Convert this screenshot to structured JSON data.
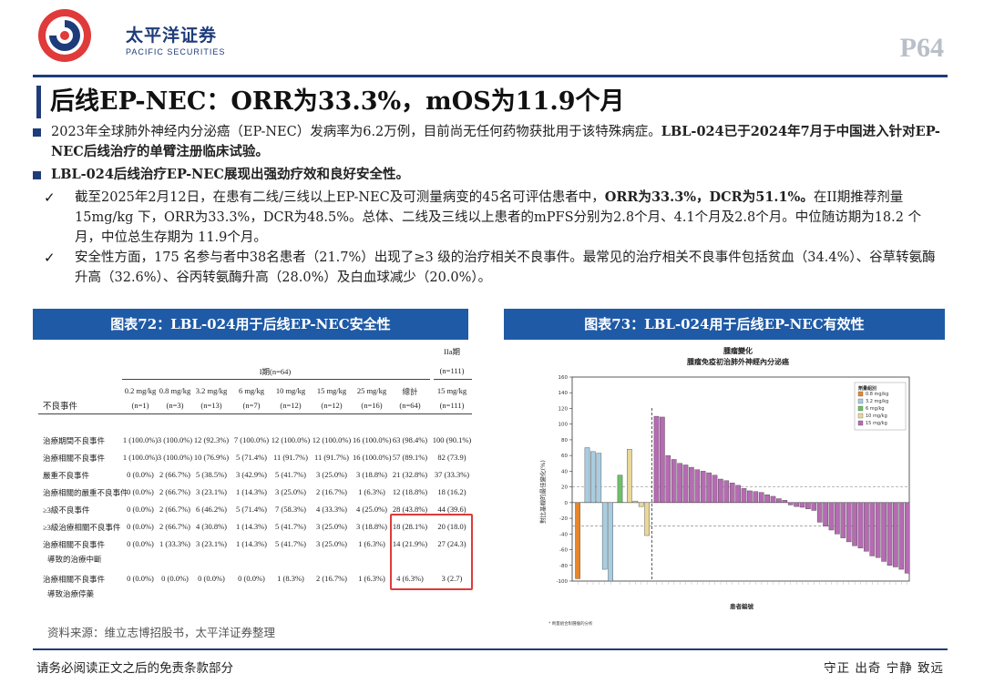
{
  "header": {
    "logo_cn": "太平洋证券",
    "logo_en": "PACIFIC SECURITIES",
    "page_number": "P64",
    "colors": {
      "brand": "#1f3c7a",
      "accent": "#e03a3a",
      "fig_header": "#1f5aa6"
    }
  },
  "title": "后线EP-NEC：ORR为33.3%，mOS为11.9个月",
  "bullets": {
    "b1_text": "2023年全球肺外神经内分泌癌（EP-NEC）发病率为6.2万例，目前尚无任何药物获批用于该特殊病症。",
    "b1_bold": "LBL-024已于2024年7月于中国进入针对EP-NEC后线治疗的单臂注册临床试验。",
    "b2_bold": "LBL-024后线治疗EP-NEC展现出强劲疗效和良好安全性。",
    "c1_text_a": "截至2025年2月12日，在患有二线/三线以上EP-NEC及可测量病变的45名可评估患者中，",
    "c1_bold": "ORR为33.3%，DCR为51.1%。",
    "c1_text_b": "在II期推荐剂量15mg/kg 下，ORR为33.3%，DCR为48.5%。总体、二线及三线以上患者的mPFS分别为2.8个月、4.1个月及2.8个月。中位随访期为18.2 个月，中位总生存期为 11.9个月。",
    "c2_text": "安全性方面，175 名参与者中38名患者（21.7%）出现了≥3 级的治疗相关不良事件。最常见的治疗相关不良事件包括贫血（34.4%）、谷草转氨酶升高（32.6%）、谷丙转氨酶升高（28.0%）及白血球减少（20.0%）。",
    "check_icon": "check-icon"
  },
  "fig72": {
    "title": "图表72：LBL-024用于后线EP-NEC安全性",
    "phase1_header": "I期(n=64)",
    "phase2_header": "IIa期",
    "phase2_n": "(n=111)",
    "row_header": "不良事件",
    "columns": [
      {
        "dose": "0.2 mg/kg",
        "n": "(n=1)"
      },
      {
        "dose": "0.8 mg/kg",
        "n": "(n=3)"
      },
      {
        "dose": "3.2 mg/kg",
        "n": "(n=13)"
      },
      {
        "dose": "6 mg/kg",
        "n": "(n=7)"
      },
      {
        "dose": "10 mg/kg",
        "n": "(n=12)"
      },
      {
        "dose": "15 mg/kg",
        "n": "(n=12)"
      },
      {
        "dose": "25 mg/kg",
        "n": "(n=16)"
      },
      {
        "dose": "總計",
        "n": "(n=64)"
      },
      {
        "dose": "15 mg/kg",
        "n": "(n=111)"
      }
    ],
    "rows": [
      {
        "label": "治療期間不良事件",
        "values": [
          "1 (100.0%)",
          "3 (100.0%)",
          "12 (92.3%)",
          "7 (100.0%)",
          "12 (100.0%)",
          "12 (100.0%)",
          "16 (100.0%)",
          "63 (98.4%)",
          "100 (90.1%)"
        ]
      },
      {
        "label": "治療相關不良事件",
        "values": [
          "1 (100.0%)",
          "3 (100.0%)",
          "10 (76.9%)",
          "5 (71.4%)",
          "11 (91.7%)",
          "11 (91.7%)",
          "16 (100.0%)",
          "57 (89.1%)",
          "82 (73.9)"
        ]
      },
      {
        "label": "嚴重不良事件",
        "values": [
          "0 (0.0%)",
          "2 (66.7%)",
          "5 (38.5%)",
          "3 (42.9%)",
          "5 (41.7%)",
          "3 (25.0%)",
          "3 (18.8%)",
          "21 (32.8%)",
          "37 (33.3%)"
        ]
      },
      {
        "label": "治療相關的嚴重不良事件",
        "values": [
          "0 (0.0%)",
          "2 (66.7%)",
          "3 (23.1%)",
          "1 (14.3%)",
          "3 (25.0%)",
          "2 (16.7%)",
          "1 (6.3%)",
          "12 (18.8%)",
          "18 (16.2)"
        ]
      },
      {
        "label": "≥3級不良事件",
        "values": [
          "0 (0.0%)",
          "2 (66.7%)",
          "6 (46.2%)",
          "5 (71.4%)",
          "7 (58.3%)",
          "4 (33.3%)",
          "4 (25.0%)",
          "28 (43.8%)",
          "44 (39.6)"
        ]
      },
      {
        "label": "≥3級治療相關不良事件",
        "values": [
          "0 (0.0%)",
          "2 (66.7%)",
          "4 (30.8%)",
          "1 (14.3%)",
          "5 (41.7%)",
          "3 (25.0%)",
          "3 (18.8%)",
          "18 (28.1%)",
          "20 (18.0)"
        ]
      },
      {
        "label": "治療相關不良事件",
        "label2": "導致的治療中斷",
        "values": [
          "0 (0.0%)",
          "1 (33.3%)",
          "3 (23.1%)",
          "1 (14.3%)",
          "5 (41.7%)",
          "3 (25.0%)",
          "1 (6.3%)",
          "14 (21.9%)",
          "27 (24.3)"
        ]
      },
      {
        "label": "治療相關不良事件",
        "label2": "導致治療停藥",
        "values": [
          "0 (0.0%)",
          "0 (0.0%)",
          "0 (0.0%)",
          "0 (0.0%)",
          "1 (8.3%)",
          "2 (16.7%)",
          "1 (6.3%)",
          "4 (6.3%)",
          "3 (2.7)"
        ]
      }
    ]
  },
  "fig73": {
    "title": "图表73：LBL-024用于后线EP-NEC有效性"
  },
  "chart_data": {
    "type": "bar",
    "title": "腫瘤變化",
    "subtitle": "腫瘤免疫初治肺外神經內分泌癌",
    "xlabel": "患者編號",
    "ylabel": "對比基線的最佳變化(%)",
    "ylim": [
      -100,
      160
    ],
    "yticks": [
      -100,
      -80,
      -60,
      -40,
      -20,
      0,
      20,
      40,
      60,
      80,
      100,
      120,
      140,
      160
    ],
    "reference_lines": [
      20,
      -30
    ],
    "grid": false,
    "legend_title": "劑量組別",
    "legend_placement": "top-right",
    "series": [
      {
        "name": "0.8 mg/kg",
        "color": "#e8862a",
        "values": [
          -97
        ]
      },
      {
        "name": "3.2 mg/kg",
        "color": "#a9cde0",
        "values": [
          70,
          65,
          63,
          -85,
          -100
        ]
      },
      {
        "name": "6 mg/kg",
        "color": "#6fbf6a",
        "values": [
          35
        ]
      },
      {
        "name": "10 mg/kg",
        "color": "#e9d89a",
        "values": [
          68,
          2,
          -5,
          -42
        ]
      },
      {
        "name": "15 mg/kg",
        "color": "#b66bb3",
        "values": [
          110,
          109,
          60,
          55,
          50,
          48,
          45,
          42,
          40,
          38,
          35,
          30,
          28,
          25,
          22,
          18,
          15,
          14,
          13,
          10,
          8,
          5,
          3,
          -3,
          -5,
          -6,
          -8,
          -10,
          -25,
          -30,
          -35,
          -40,
          -45,
          -50,
          -55,
          -58,
          -62,
          -68,
          -70,
          -75,
          -80,
          -82,
          -85,
          -90
        ]
      }
    ],
    "footnote": "*  劑量組合對腫瘤的分析"
  },
  "source": "资料来源：维立志博招股书，太平洋证券整理",
  "footer": {
    "left": "请务必阅读正文之后的免责条款部分",
    "right": "守正 出奇 宁静 致远"
  }
}
